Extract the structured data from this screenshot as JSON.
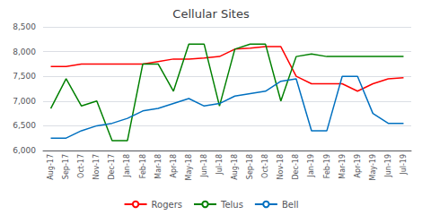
{
  "chart_data": {
    "type": "line",
    "title": "Cellular Sites",
    "categories": [
      "Aug-17",
      "Sep-17",
      "Oct-17",
      "Nov-17",
      "Dec-17",
      "Jan-18",
      "Feb-18",
      "Mar-18",
      "Apr-18",
      "May-18",
      "Jun-18",
      "Jul-18",
      "Aug-18",
      "Sep-18",
      "Oct-18",
      "Nov-18",
      "Dec-18",
      "Jan-19",
      "Feb-19",
      "Mar-19",
      "Apr-19",
      "May-19",
      "Jun-19",
      "Jul-19"
    ],
    "series": [
      {
        "name": "Rogers",
        "color": "#ff0000",
        "values": [
          7700,
          7700,
          7750,
          7750,
          7750,
          7750,
          7750,
          7800,
          7850,
          7850,
          7870,
          7900,
          8050,
          8070,
          8100,
          8100,
          7500,
          7350,
          7350,
          7350,
          7200,
          7350,
          7450,
          7470
        ]
      },
      {
        "name": "Telus",
        "color": "#008000",
        "values": [
          6850,
          7450,
          6900,
          7000,
          6200,
          6200,
          7750,
          7750,
          7200,
          8150,
          8150,
          6900,
          8050,
          8150,
          8150,
          7000,
          7900,
          7950,
          7900,
          7900,
          7900,
          7900,
          7900,
          7900
        ]
      },
      {
        "name": "Bell",
        "color": "#0070c0",
        "values": [
          6250,
          6250,
          6400,
          6500,
          6550,
          6650,
          6800,
          6850,
          6950,
          7050,
          6900,
          6950,
          7100,
          7150,
          7200,
          7400,
          7450,
          6400,
          6400,
          7500,
          7500,
          6750,
          6550,
          6550
        ]
      }
    ],
    "ylim": [
      6000,
      8500
    ],
    "yticks": [
      {
        "value": 6000,
        "label": "6,000"
      },
      {
        "value": 6500,
        "label": "6,500"
      },
      {
        "value": 7000,
        "label": "7,000"
      },
      {
        "value": 7500,
        "label": "7,500"
      },
      {
        "value": 8000,
        "label": "8,000"
      },
      {
        "value": 8500,
        "label": "8,500"
      }
    ],
    "grid": true,
    "legend": "bottom"
  }
}
